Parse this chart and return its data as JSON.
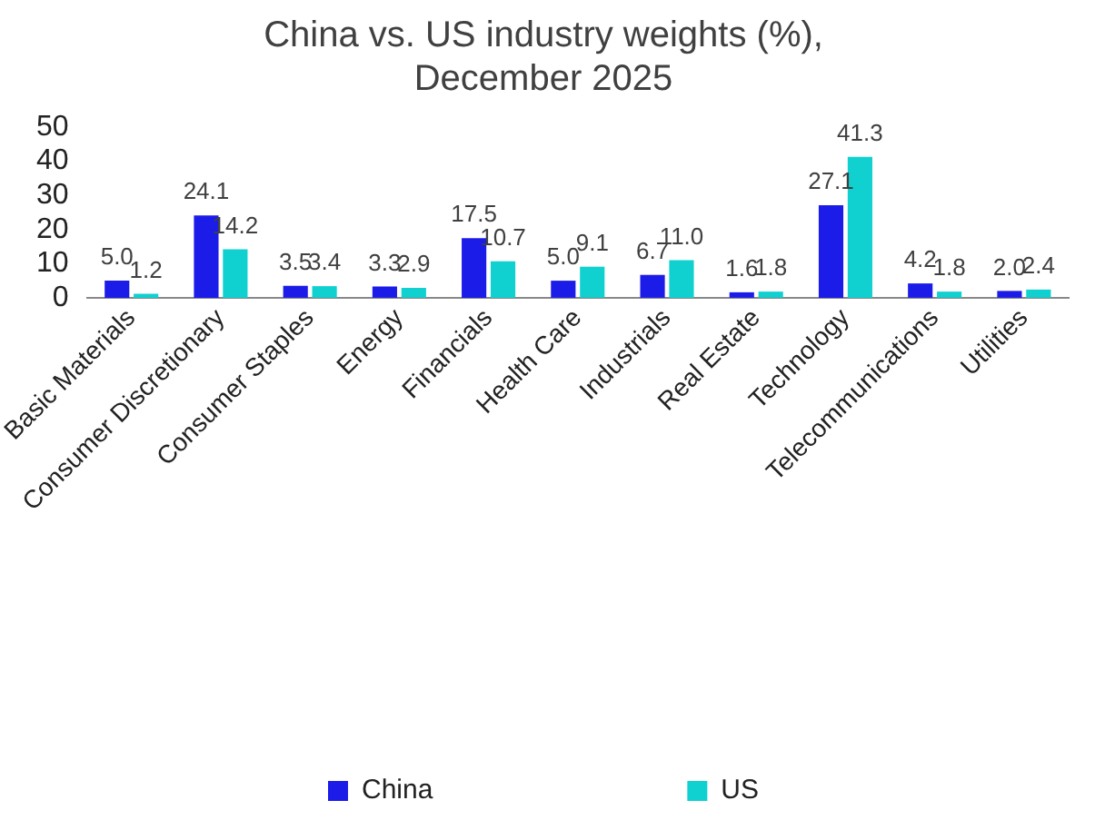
{
  "chart_data": {
    "type": "bar",
    "title": "China vs. US industry weights (%),\nDecember 2025",
    "categories": [
      "Basic Materials",
      "Consumer Discretionary",
      "Consumer Staples",
      "Energy",
      "Financials",
      "Health Care",
      "Industrials",
      "Real Estate",
      "Technology",
      "Telecommunications",
      "Utilities"
    ],
    "series": [
      {
        "name": "China",
        "color": "#1c1ce8",
        "values": [
          5.0,
          24.1,
          3.5,
          3.3,
          17.5,
          5.0,
          6.7,
          1.6,
          27.1,
          4.2,
          2.0
        ],
        "value_labels": [
          "5.0",
          "24.1",
          "3.5",
          "3.3",
          "17.5",
          "5.0",
          "6.7",
          "1.6",
          "27.1",
          "4.2",
          "2.0"
        ]
      },
      {
        "name": "US",
        "color": "#10d0d0",
        "values": [
          1.2,
          14.2,
          3.4,
          2.9,
          10.7,
          9.1,
          11.0,
          1.8,
          41.3,
          1.8,
          2.4
        ],
        "value_labels": [
          "1.2",
          "14.2",
          "3.4",
          "2.9",
          "10.7",
          "9.1",
          "11.0",
          "1.8",
          "41.3",
          "1.8",
          "2.4"
        ]
      }
    ],
    "ylim": [
      0,
      50
    ],
    "yticks": [
      0,
      10,
      20,
      30,
      40,
      50
    ],
    "grid": false,
    "legend": "bottom"
  }
}
